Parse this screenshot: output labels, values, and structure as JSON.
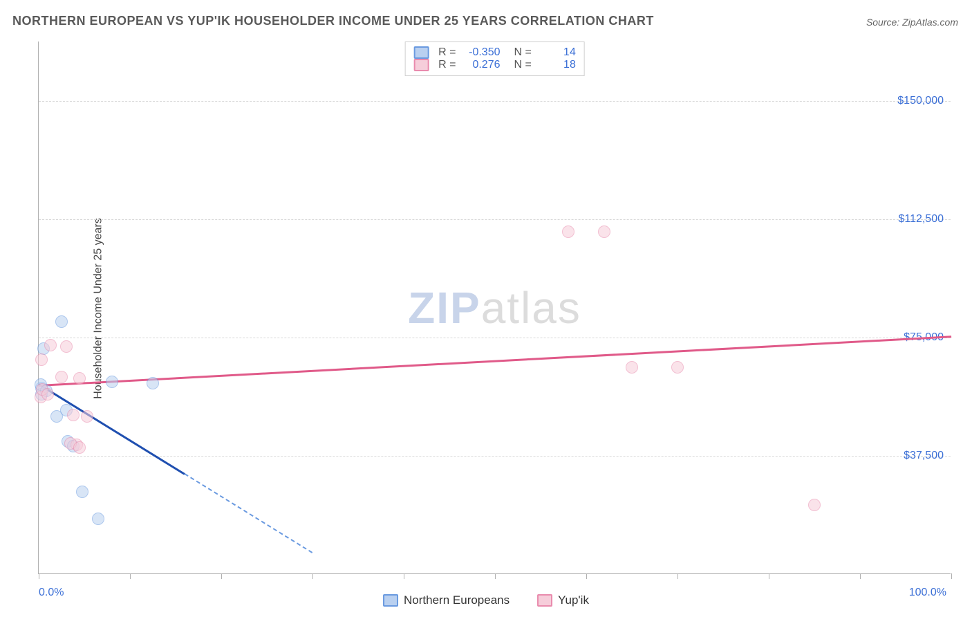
{
  "title": "NORTHERN EUROPEAN VS YUP'IK HOUSEHOLDER INCOME UNDER 25 YEARS CORRELATION CHART",
  "source_label": "Source:",
  "source_value": "ZipAtlas.com",
  "y_axis_label": "Householder Income Under 25 years",
  "watermark": {
    "part1": "ZIP",
    "part2": "atlas"
  },
  "chart": {
    "type": "scatter",
    "xlim": [
      0,
      100
    ],
    "ylim": [
      0,
      168750
    ],
    "x_ticks": [
      0,
      10,
      20,
      30,
      40,
      50,
      60,
      70,
      80,
      90,
      100
    ],
    "x_tick_labels": {
      "0": "0.0%",
      "100": "100.0%"
    },
    "y_ticks": [
      37500,
      75000,
      112500,
      150000
    ],
    "y_tick_labels": [
      "$37,500",
      "$75,000",
      "$112,500",
      "$150,000"
    ],
    "background_color": "#ffffff",
    "grid_color": "#d8d8d8",
    "axis_color": "#b0b0b0",
    "label_color": "#3b6fd6",
    "point_radius": 9,
    "point_opacity": 0.55,
    "series": [
      {
        "name": "Northern Europeans",
        "color_fill": "#b9d0f0",
        "color_stroke": "#6a9ae0",
        "r_value": "-0.350",
        "n_value": "14",
        "trend": {
          "x1": 0,
          "y1": 60500,
          "x2": 16,
          "y2": 32000,
          "color": "#1f4fb0",
          "width": 2.5
        },
        "trend_extrapolate": {
          "x1": 16,
          "y1": 32000,
          "x2": 30,
          "y2": 7000,
          "color": "#6a9ae0",
          "dash": true
        },
        "points": [
          {
            "x": 0.3,
            "y": 59000
          },
          {
            "x": 0.3,
            "y": 57000
          },
          {
            "x": 0.5,
            "y": 71500
          },
          {
            "x": 0.2,
            "y": 60000
          },
          {
            "x": 0.8,
            "y": 58000
          },
          {
            "x": 2.0,
            "y": 50000
          },
          {
            "x": 2.5,
            "y": 80000
          },
          {
            "x": 3.0,
            "y": 52000
          },
          {
            "x": 3.2,
            "y": 42000
          },
          {
            "x": 3.8,
            "y": 40500
          },
          {
            "x": 4.8,
            "y": 26000
          },
          {
            "x": 6.5,
            "y": 17500
          },
          {
            "x": 8.0,
            "y": 61000
          },
          {
            "x": 12.5,
            "y": 60500
          }
        ]
      },
      {
        "name": "Yup'ik",
        "color_fill": "#f6cdda",
        "color_stroke": "#e98bad",
        "r_value": "0.276",
        "n_value": "18",
        "trend": {
          "x1": 0,
          "y1": 60000,
          "x2": 100,
          "y2": 75500,
          "color": "#e05a89",
          "width": 2.5
        },
        "points": [
          {
            "x": 0.2,
            "y": 56000
          },
          {
            "x": 0.3,
            "y": 68000
          },
          {
            "x": 0.4,
            "y": 58500
          },
          {
            "x": 1.3,
            "y": 72500
          },
          {
            "x": 1.0,
            "y": 57000
          },
          {
            "x": 3.0,
            "y": 72000
          },
          {
            "x": 2.5,
            "y": 62500
          },
          {
            "x": 4.5,
            "y": 62000
          },
          {
            "x": 3.8,
            "y": 50500
          },
          {
            "x": 5.3,
            "y": 50000
          },
          {
            "x": 4.2,
            "y": 41000
          },
          {
            "x": 3.5,
            "y": 41500
          },
          {
            "x": 4.5,
            "y": 40000
          },
          {
            "x": 58,
            "y": 108500
          },
          {
            "x": 62,
            "y": 108500
          },
          {
            "x": 65,
            "y": 65500
          },
          {
            "x": 70,
            "y": 65500
          },
          {
            "x": 85,
            "y": 22000
          }
        ]
      }
    ]
  },
  "bottom_legend": [
    {
      "label": "Northern Europeans",
      "fill": "#b9d0f0",
      "stroke": "#6a9ae0"
    },
    {
      "label": "Yup'ik",
      "fill": "#f6cdda",
      "stroke": "#e98bad"
    }
  ]
}
